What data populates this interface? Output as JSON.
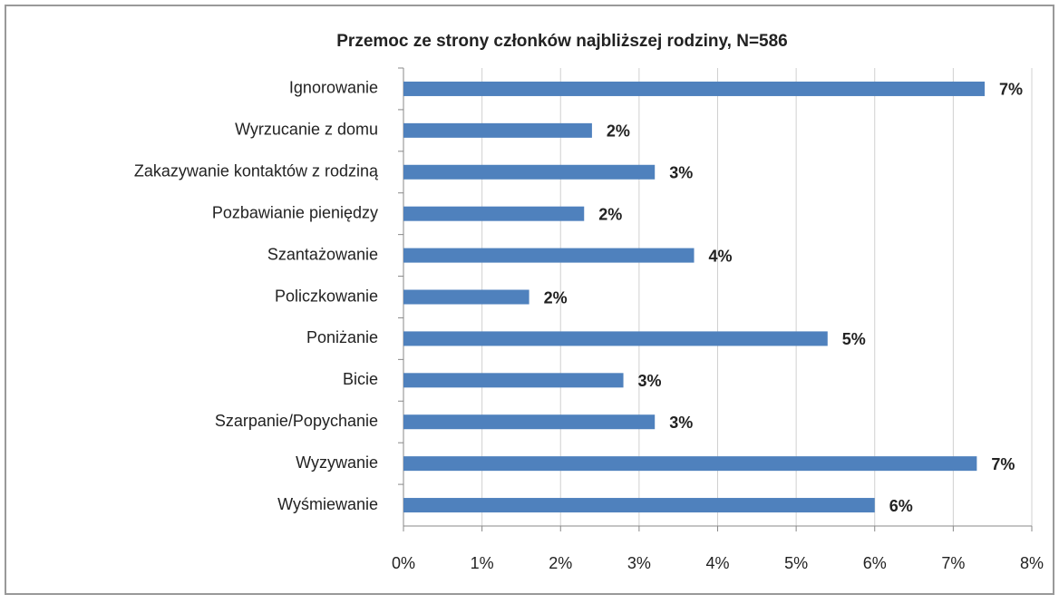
{
  "chart_data": {
    "type": "bar",
    "orientation": "horizontal",
    "title": "Przemoc ze strony członków najbliższej rodziny, N=586",
    "categories": [
      "Ignorowanie",
      "Wyrzucanie z domu",
      "Zakazywanie kontaktów z rodziną",
      "Pozbawianie pieniędzy",
      "Szantażowanie",
      "Policzkowanie",
      "Poniżanie",
      "Bicie",
      "Szarpanie/Popychanie",
      "Wyzywanie",
      "Wyśmiewanie"
    ],
    "values": [
      7.4,
      2.4,
      3.2,
      2.3,
      3.7,
      1.6,
      5.4,
      2.8,
      3.2,
      7.3,
      6.0
    ],
    "value_labels": [
      "7%",
      "2%",
      "3%",
      "2%",
      "4%",
      "2%",
      "5%",
      "3%",
      "3%",
      "7%",
      "6%"
    ],
    "color": "#4f81bd",
    "xlim": [
      0,
      8
    ],
    "xticks": [
      {
        "value": 0,
        "label": "0%"
      },
      {
        "value": 1,
        "label": "1%"
      },
      {
        "value": 2,
        "label": "2%"
      },
      {
        "value": 3,
        "label": "3%"
      },
      {
        "value": 4,
        "label": "4%"
      },
      {
        "value": 5,
        "label": "5%"
      },
      {
        "value": 6,
        "label": "6%"
      },
      {
        "value": 7,
        "label": "7%"
      },
      {
        "value": 8,
        "label": "8%"
      }
    ],
    "grid": true
  }
}
